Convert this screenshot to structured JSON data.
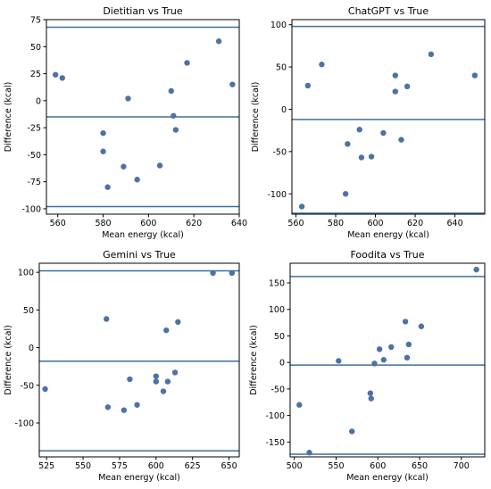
{
  "style": {
    "point_color": "#4c72a6",
    "line_color": "#3f6f9b"
  },
  "chart_data": [
    {
      "type": "scatter",
      "title": "Dietitian vs True",
      "xlabel": "Mean energy (kcal)",
      "ylabel": "Difference (kcal)",
      "xlim": [
        555,
        640
      ],
      "ylim": [
        -105,
        75
      ],
      "xticks": [
        560,
        580,
        600,
        620,
        640
      ],
      "yticks": [
        -100,
        -75,
        -50,
        -25,
        0,
        25,
        50,
        75
      ],
      "hlines": [
        68,
        -15,
        -98
      ],
      "points": {
        "x": [
          559,
          562,
          580,
          580,
          582,
          589,
          591,
          595,
          605,
          610,
          611,
          612,
          617,
          631,
          637
        ],
        "y": [
          24,
          21,
          -30,
          -47,
          -80,
          -61,
          2,
          -73,
          -60,
          9,
          -14,
          -27,
          35,
          55,
          15
        ]
      }
    },
    {
      "type": "scatter",
      "title": "ChatGPT vs True",
      "xlabel": "Mean energy (kcal)",
      "ylabel": "Difference (kcal)",
      "xlim": [
        558,
        655
      ],
      "ylim": [
        -124,
        106
      ],
      "xticks": [
        560,
        580,
        600,
        620,
        640
      ],
      "yticks": [
        -100,
        -50,
        0,
        50,
        100
      ],
      "hlines": [
        98,
        -12,
        -123
      ],
      "points": {
        "x": [
          563,
          566,
          573,
          585,
          586,
          592,
          593,
          598,
          604,
          610,
          610,
          613,
          616,
          628,
          650
        ],
        "y": [
          -115,
          28,
          53,
          -100,
          -41,
          -24,
          -57,
          -56,
          -28,
          21,
          40,
          -36,
          27,
          65,
          40
        ]
      }
    },
    {
      "type": "scatter",
      "title": "Gemini vs True",
      "xlabel": "Mean energy (kcal)",
      "ylabel": "Difference (kcal)",
      "xlim": [
        520,
        657
      ],
      "ylim": [
        -145,
        112
      ],
      "xticks": [
        525,
        550,
        575,
        600,
        625,
        650
      ],
      "yticks": [
        -100,
        -50,
        0,
        50,
        100
      ],
      "hlines": [
        102,
        -18,
        -137
      ],
      "points": {
        "x": [
          524,
          566,
          567,
          578,
          582,
          587,
          600,
          600,
          605,
          607,
          608,
          613,
          615,
          639,
          652
        ],
        "y": [
          -55,
          38,
          -79,
          -83,
          -42,
          -76,
          -38,
          -45,
          -58,
          23,
          -45,
          -33,
          34,
          99,
          99
        ]
      }
    },
    {
      "type": "scatter",
      "title": "Foodita vs True",
      "xlabel": "Mean energy (kcal)",
      "ylabel": "Difference (kcal)",
      "xlim": [
        495,
        728
      ],
      "ylim": [
        -178,
        187
      ],
      "xticks": [
        500,
        550,
        600,
        650,
        700
      ],
      "yticks": [
        -150,
        -100,
        -50,
        0,
        50,
        100,
        150
      ],
      "hlines": [
        162,
        -5,
        -173
      ],
      "points": {
        "x": [
          506,
          518,
          553,
          569,
          591,
          592,
          596,
          602,
          607,
          616,
          633,
          635,
          637,
          652,
          718
        ],
        "y": [
          -80,
          -170,
          3,
          -130,
          -58,
          -68,
          -2,
          25,
          5,
          29,
          77,
          9,
          34,
          68,
          175
        ]
      }
    }
  ]
}
